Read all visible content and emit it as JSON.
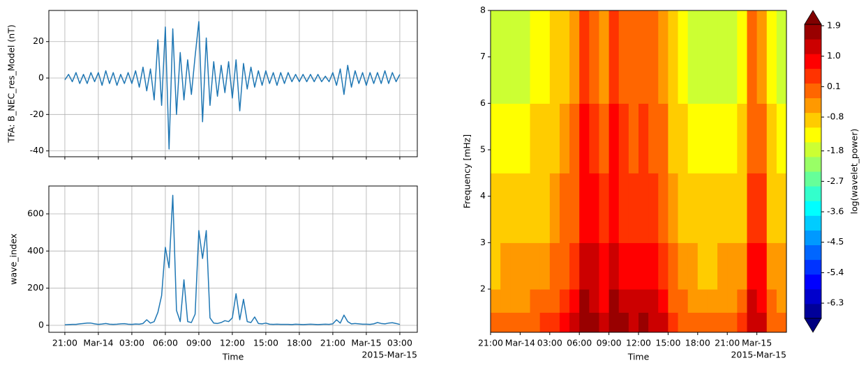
{
  "chart_data": [
    {
      "type": "line",
      "ylabel": "TFA: B_NEC_res_Model (nT)",
      "color": "#1f77b4",
      "grid": true,
      "xlim": [
        "2015-03-13T19:34",
        "2015-03-15T04:34"
      ],
      "ylim": [
        -43.2,
        37.1
      ],
      "yticks": [
        -40,
        -20,
        0,
        20
      ],
      "xticks": [
        "2015-03-13T21:00",
        "2015-03-14T00:00",
        "2015-03-14T03:00",
        "2015-03-14T06:00",
        "2015-03-14T09:00",
        "2015-03-14T12:00",
        "2015-03-14T15:00",
        "2015-03-14T18:00",
        "2015-03-14T21:00",
        "2015-03-15T00:00",
        "2015-03-15T03:00"
      ],
      "x": [
        "2015-03-13T21:00",
        "2015-03-13T21:20",
        "2015-03-13T21:40",
        "2015-03-13T22:00",
        "2015-03-13T22:20",
        "2015-03-13T22:40",
        "2015-03-13T23:00",
        "2015-03-13T23:20",
        "2015-03-13T23:40",
        "2015-03-14T00:00",
        "2015-03-14T00:20",
        "2015-03-14T00:40",
        "2015-03-14T01:00",
        "2015-03-14T01:20",
        "2015-03-14T01:40",
        "2015-03-14T02:00",
        "2015-03-14T02:20",
        "2015-03-14T02:40",
        "2015-03-14T03:00",
        "2015-03-14T03:20",
        "2015-03-14T03:40",
        "2015-03-14T04:00",
        "2015-03-14T04:20",
        "2015-03-14T04:40",
        "2015-03-14T05:00",
        "2015-03-14T05:20",
        "2015-03-14T05:40",
        "2015-03-14T06:00",
        "2015-03-14T06:20",
        "2015-03-14T06:40",
        "2015-03-14T07:00",
        "2015-03-14T07:20",
        "2015-03-14T07:40",
        "2015-03-14T08:00",
        "2015-03-14T08:20",
        "2015-03-14T08:40",
        "2015-03-14T09:00",
        "2015-03-14T09:20",
        "2015-03-14T09:40",
        "2015-03-14T10:00",
        "2015-03-14T10:20",
        "2015-03-14T10:40",
        "2015-03-14T11:00",
        "2015-03-14T11:20",
        "2015-03-14T11:40",
        "2015-03-14T12:00",
        "2015-03-14T12:20",
        "2015-03-14T12:40",
        "2015-03-14T13:00",
        "2015-03-14T13:20",
        "2015-03-14T13:40",
        "2015-03-14T14:00",
        "2015-03-14T14:20",
        "2015-03-14T14:40",
        "2015-03-14T15:00",
        "2015-03-14T15:20",
        "2015-03-14T15:40",
        "2015-03-14T16:00",
        "2015-03-14T16:20",
        "2015-03-14T16:40",
        "2015-03-14T17:00",
        "2015-03-14T17:20",
        "2015-03-14T17:40",
        "2015-03-14T18:00",
        "2015-03-14T18:20",
        "2015-03-14T18:40",
        "2015-03-14T19:00",
        "2015-03-14T19:20",
        "2015-03-14T19:40",
        "2015-03-14T20:00",
        "2015-03-14T20:20",
        "2015-03-14T20:40",
        "2015-03-14T21:00",
        "2015-03-14T21:20",
        "2015-03-14T21:40",
        "2015-03-14T22:00",
        "2015-03-14T22:20",
        "2015-03-14T22:40",
        "2015-03-14T23:00",
        "2015-03-14T23:20",
        "2015-03-14T23:40",
        "2015-03-15T00:00",
        "2015-03-15T00:20",
        "2015-03-15T00:40",
        "2015-03-15T01:00",
        "2015-03-15T01:20",
        "2015-03-15T01:40",
        "2015-03-15T02:00",
        "2015-03-15T02:20",
        "2015-03-15T02:40",
        "2015-03-15T03:00"
      ],
      "values": [
        -1,
        2,
        -2,
        3,
        -3,
        2,
        -3,
        3,
        -2,
        3,
        -4,
        4,
        -3,
        3,
        -4,
        2,
        -3,
        3,
        -3,
        4,
        -5,
        6,
        -7,
        5,
        -12,
        21,
        -15,
        28,
        -39,
        27,
        -20,
        14,
        -12,
        10,
        -9,
        12,
        31,
        -24,
        22,
        -15,
        9,
        -10,
        7,
        -8,
        9,
        -11,
        10,
        -18,
        8,
        -6,
        6,
        -5,
        4,
        -4,
        4,
        -3,
        3,
        -4,
        3,
        -3,
        3,
        -2,
        2,
        -2,
        2,
        -2,
        2,
        -2,
        2,
        -2,
        1,
        -2,
        3,
        -4,
        5,
        -9,
        7,
        -5,
        4,
        -3,
        3,
        -4,
        3,
        -3,
        3,
        -3,
        4,
        -3,
        3,
        -2,
        2
      ]
    },
    {
      "type": "line",
      "ylabel": "wave_index",
      "xlabel": "Time",
      "x_offset_label": "2015-Mar-15",
      "color": "#1f77b4",
      "grid": true,
      "xlim": [
        "2015-03-13T19:34",
        "2015-03-15T04:34"
      ],
      "ylim": [
        -37.5,
        750
      ],
      "yticks": [
        0,
        200,
        400,
        600
      ],
      "xticks": [
        {
          "value": "2015-03-13T21:00",
          "label": "21:00"
        },
        {
          "value": "2015-03-14T00:00",
          "label": "Mar-14"
        },
        {
          "value": "2015-03-14T03:00",
          "label": "03:00"
        },
        {
          "value": "2015-03-14T06:00",
          "label": "06:00"
        },
        {
          "value": "2015-03-14T09:00",
          "label": "09:00"
        },
        {
          "value": "2015-03-14T12:00",
          "label": "12:00"
        },
        {
          "value": "2015-03-14T15:00",
          "label": "15:00"
        },
        {
          "value": "2015-03-14T18:00",
          "label": "18:00"
        },
        {
          "value": "2015-03-14T21:00",
          "label": "21:00"
        },
        {
          "value": "2015-03-15T00:00",
          "label": "Mar-15"
        },
        {
          "value": "2015-03-15T03:00",
          "label": "03:00"
        }
      ],
      "x": [
        "2015-03-13T21:00",
        "2015-03-13T21:20",
        "2015-03-13T21:40",
        "2015-03-13T22:00",
        "2015-03-13T22:20",
        "2015-03-13T22:40",
        "2015-03-13T23:00",
        "2015-03-13T23:20",
        "2015-03-13T23:40",
        "2015-03-14T00:00",
        "2015-03-14T00:20",
        "2015-03-14T00:40",
        "2015-03-14T01:00",
        "2015-03-14T01:20",
        "2015-03-14T01:40",
        "2015-03-14T02:00",
        "2015-03-14T02:20",
        "2015-03-14T02:40",
        "2015-03-14T03:00",
        "2015-03-14T03:20",
        "2015-03-14T03:40",
        "2015-03-14T04:00",
        "2015-03-14T04:20",
        "2015-03-14T04:40",
        "2015-03-14T05:00",
        "2015-03-14T05:20",
        "2015-03-14T05:40",
        "2015-03-14T06:00",
        "2015-03-14T06:20",
        "2015-03-14T06:40",
        "2015-03-14T07:00",
        "2015-03-14T07:20",
        "2015-03-14T07:40",
        "2015-03-14T08:00",
        "2015-03-14T08:20",
        "2015-03-14T08:40",
        "2015-03-14T09:00",
        "2015-03-14T09:20",
        "2015-03-14T09:40",
        "2015-03-14T10:00",
        "2015-03-14T10:20",
        "2015-03-14T10:40",
        "2015-03-14T11:00",
        "2015-03-14T11:20",
        "2015-03-14T11:40",
        "2015-03-14T12:00",
        "2015-03-14T12:20",
        "2015-03-14T12:40",
        "2015-03-14T13:00",
        "2015-03-14T13:20",
        "2015-03-14T13:40",
        "2015-03-14T14:00",
        "2015-03-14T14:20",
        "2015-03-14T14:40",
        "2015-03-14T15:00",
        "2015-03-14T15:20",
        "2015-03-14T15:40",
        "2015-03-14T16:00",
        "2015-03-14T16:20",
        "2015-03-14T16:40",
        "2015-03-14T17:00",
        "2015-03-14T17:20",
        "2015-03-14T17:40",
        "2015-03-14T18:00",
        "2015-03-14T18:20",
        "2015-03-14T18:40",
        "2015-03-14T19:00",
        "2015-03-14T19:20",
        "2015-03-14T19:40",
        "2015-03-14T20:00",
        "2015-03-14T20:20",
        "2015-03-14T20:40",
        "2015-03-14T21:00",
        "2015-03-14T21:20",
        "2015-03-14T21:40",
        "2015-03-14T22:00",
        "2015-03-14T22:20",
        "2015-03-14T22:40",
        "2015-03-14T23:00",
        "2015-03-14T23:20",
        "2015-03-14T23:40",
        "2015-03-15T00:00",
        "2015-03-15T00:20",
        "2015-03-15T00:40",
        "2015-03-15T01:00",
        "2015-03-15T01:20",
        "2015-03-15T01:40",
        "2015-03-15T02:00",
        "2015-03-15T02:20",
        "2015-03-15T02:40",
        "2015-03-15T03:00"
      ],
      "values": [
        3,
        4,
        5,
        5,
        8,
        10,
        12,
        12,
        8,
        5,
        7,
        10,
        6,
        5,
        6,
        8,
        9,
        6,
        5,
        7,
        6,
        10,
        30,
        12,
        20,
        70,
        160,
        420,
        310,
        700,
        80,
        20,
        245,
        20,
        15,
        60,
        510,
        360,
        510,
        40,
        12,
        10,
        15,
        25,
        20,
        40,
        170,
        30,
        140,
        20,
        15,
        45,
        10,
        8,
        12,
        6,
        5,
        6,
        5,
        5,
        5,
        4,
        6,
        5,
        4,
        5,
        6,
        5,
        4,
        5,
        6,
        5,
        8,
        30,
        12,
        55,
        20,
        8,
        10,
        8,
        6,
        6,
        5,
        8,
        15,
        10,
        8,
        12,
        14,
        10,
        5
      ]
    },
    {
      "type": "heatmap",
      "ylabel": "Frequency [mHz]",
      "xlabel": "Time",
      "x_offset_label": "2015-Mar-15",
      "colormap": "jet",
      "xlim": [
        "2015-03-13T21:00",
        "2015-03-15T03:00"
      ],
      "ylim": [
        1.07,
        8
      ],
      "yticks": [
        2,
        3,
        4,
        5,
        6,
        7,
        8
      ],
      "xticks": [
        {
          "value": "2015-03-13T21:00",
          "label": "21:00"
        },
        {
          "value": "2015-03-14T00:00",
          "label": "Mar-14"
        },
        {
          "value": "2015-03-14T03:00",
          "label": "03:00"
        },
        {
          "value": "2015-03-14T06:00",
          "label": "06:00"
        },
        {
          "value": "2015-03-14T09:00",
          "label": "09:00"
        },
        {
          "value": "2015-03-14T12:00",
          "label": "12:00"
        },
        {
          "value": "2015-03-14T15:00",
          "label": "15:00"
        },
        {
          "value": "2015-03-14T18:00",
          "label": "18:00"
        },
        {
          "value": "2015-03-14T21:00",
          "label": "21:00"
        },
        {
          "value": "2015-03-15T00:00",
          "label": "Mar-15"
        }
      ],
      "x": [
        "2015-03-13T21:00",
        "2015-03-13T22:00",
        "2015-03-13T23:00",
        "2015-03-14T00:00",
        "2015-03-14T01:00",
        "2015-03-14T02:00",
        "2015-03-14T03:00",
        "2015-03-14T04:00",
        "2015-03-14T05:00",
        "2015-03-14T06:00",
        "2015-03-14T07:00",
        "2015-03-14T08:00",
        "2015-03-14T09:00",
        "2015-03-14T10:00",
        "2015-03-14T11:00",
        "2015-03-14T12:00",
        "2015-03-14T13:00",
        "2015-03-14T14:00",
        "2015-03-14T15:00",
        "2015-03-14T16:00",
        "2015-03-14T17:00",
        "2015-03-14T18:00",
        "2015-03-14T19:00",
        "2015-03-14T20:00",
        "2015-03-14T21:00",
        "2015-03-14T22:00",
        "2015-03-14T23:00",
        "2015-03-15T00:00",
        "2015-03-15T01:00",
        "2015-03-15T02:00",
        "2015-03-15T03:00"
      ],
      "y": [
        1.07,
        1.5,
        2,
        3,
        4.5,
        6,
        8
      ],
      "z": [
        [
          -0.1,
          0.1,
          0.1,
          0.1,
          0.2,
          0.4,
          0.5,
          0.8,
          1.1,
          2.0,
          1.7,
          1.3,
          2.0,
          1.6,
          1.4,
          1.6,
          1.4,
          1.1,
          0.5,
          0.2,
          0.1,
          -0.1,
          -0.1,
          0.1,
          0.1,
          0.4,
          1.4,
          1.3,
          0.2,
          0.1
        ],
        [
          -0.4,
          -0.3,
          -0.3,
          -0.3,
          -0.1,
          0.1,
          0.2,
          0.5,
          0.8,
          1.7,
          1.4,
          1.0,
          1.7,
          1.3,
          1.1,
          1.3,
          1.1,
          0.8,
          0.2,
          -0.1,
          -0.3,
          -0.4,
          -0.4,
          -0.3,
          -0.3,
          0.1,
          1.1,
          1.0,
          -0.1,
          -0.3
        ],
        [
          -0.7,
          -0.6,
          -0.6,
          -0.6,
          -0.4,
          -0.3,
          -0.1,
          0.2,
          0.5,
          1.4,
          1.1,
          0.7,
          1.4,
          1.0,
          0.8,
          1.0,
          0.8,
          0.5,
          -0.1,
          -0.4,
          -0.6,
          -0.7,
          -0.7,
          -0.6,
          -0.6,
          -0.3,
          0.8,
          0.7,
          -0.4,
          -0.6
        ],
        [
          -1.1,
          -1.0,
          -1.0,
          -1.0,
          -0.8,
          -0.7,
          -0.5,
          -0.2,
          0.1,
          1.0,
          0.7,
          0.3,
          1.0,
          0.6,
          0.4,
          0.6,
          0.4,
          0.1,
          -0.5,
          -0.8,
          -1.0,
          -1.1,
          -1.1,
          -1.0,
          -1.0,
          -0.7,
          0.4,
          0.3,
          -0.8,
          -1.0
        ],
        [
          -1.4,
          -1.3,
          -1.3,
          -1.3,
          -1.1,
          -1.0,
          -0.8,
          -0.5,
          -0.2,
          0.7,
          0.4,
          0.0,
          0.7,
          0.3,
          0.1,
          0.3,
          0.1,
          -0.2,
          -0.8,
          -1.1,
          -1.3,
          -1.4,
          -1.4,
          -1.3,
          -1.3,
          -1.0,
          0.1,
          0.0,
          -1.1,
          -1.3
        ],
        [
          -1.7,
          -1.6,
          -1.6,
          -1.6,
          -1.4,
          -1.3,
          -1.1,
          -0.8,
          -0.5,
          0.4,
          0.1,
          -0.3,
          0.4,
          0.0,
          -0.2,
          0.0,
          -0.2,
          -0.5,
          -1.1,
          -1.4,
          -1.6,
          -1.7,
          -1.7,
          -1.6,
          -1.6,
          -1.3,
          -0.2,
          -0.3,
          -1.4,
          -1.6
        ]
      ],
      "colorbar": {
        "label": "log(wavelet_power)",
        "clim": [
          -6.75,
          1.94
        ],
        "ticks": [
          1.9,
          {
            "value": 1.0,
            "label": "1.0"
          },
          0.1,
          -0.8,
          -1.8,
          -2.7,
          -3.6,
          -4.5,
          -5.4,
          -6.3
        ]
      }
    }
  ]
}
